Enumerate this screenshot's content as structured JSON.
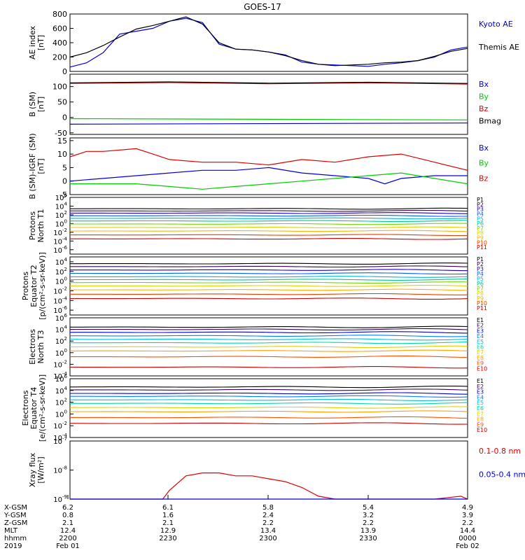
{
  "title": "GOES-17",
  "colors": {
    "black": "#000000",
    "red": "#dd0000",
    "green": "#00cc00",
    "blue": "#0000dd",
    "p": [
      "#000000",
      "#3a0050",
      "#1a00c8",
      "#0060ff",
      "#00b4d8",
      "#00c890",
      "#70d800",
      "#e0d000",
      "#ffb000",
      "#e04000",
      "#cc0000"
    ],
    "e": [
      "#000000",
      "#3a0050",
      "#0000d0",
      "#0080ff",
      "#00c0e0",
      "#00d8a0",
      "#e0d000",
      "#ffa000",
      "#ff5000",
      "#cc0000"
    ]
  },
  "chart_data": [
    {
      "id": "ae",
      "type": "line",
      "ylabel": "AE index\n[nT]",
      "ylim": [
        0,
        800
      ],
      "yticks": [
        "0",
        "200",
        "400",
        "600",
        "800"
      ],
      "series": [
        {
          "name": "Kyoto AE",
          "color": "blue",
          "x": [
            0,
            5,
            10,
            15,
            20,
            25,
            30,
            35,
            40,
            45,
            50,
            55,
            60,
            65,
            70,
            75,
            80,
            85,
            90,
            95,
            100,
            105,
            110,
            115,
            120
          ],
          "y": [
            60,
            120,
            260,
            520,
            560,
            600,
            700,
            740,
            680,
            380,
            310,
            300,
            270,
            230,
            130,
            100,
            90,
            80,
            70,
            100,
            120,
            150,
            200,
            300,
            340
          ]
        },
        {
          "name": "Themis AE",
          "color": "black",
          "x": [
            0,
            5,
            10,
            15,
            20,
            25,
            30,
            35,
            40,
            45,
            50,
            55,
            60,
            65,
            70,
            75,
            80,
            85,
            90,
            95,
            100,
            105,
            110,
            115,
            120
          ],
          "y": [
            200,
            260,
            360,
            480,
            590,
            640,
            700,
            760,
            660,
            400,
            310,
            300,
            270,
            220,
            150,
            100,
            80,
            90,
            100,
            120,
            130,
            150,
            210,
            280,
            320
          ]
        }
      ]
    },
    {
      "id": "bsm",
      "type": "line",
      "ylabel": "B (SM)\n[nT]",
      "ylim": [
        -55,
        140
      ],
      "yticks": [
        "-50",
        "0",
        "50",
        "100"
      ],
      "ytick_values": [
        -50,
        0,
        50,
        100
      ],
      "series": [
        {
          "name": "Bx",
          "color": "blue",
          "x": [
            0,
            120
          ],
          "y": [
            -22,
            -18
          ]
        },
        {
          "name": "By",
          "color": "green",
          "x": [
            0,
            120
          ],
          "y": [
            -4,
            -8
          ]
        },
        {
          "name": "Bz",
          "color": "red",
          "x": [
            0,
            30,
            60,
            90,
            120
          ],
          "y": [
            110,
            113,
            109,
            112,
            108
          ]
        },
        {
          "name": "Bmag",
          "color": "black",
          "x": [
            0,
            30,
            60,
            90,
            120
          ],
          "y": [
            112,
            115,
            111,
            114,
            110
          ]
        }
      ]
    },
    {
      "id": "bigrf",
      "type": "line",
      "ylabel": "B (SM)-IGRF (SM)\n[nT]",
      "ylim": [
        -5,
        16
      ],
      "yticks": [
        "-5",
        "0",
        "5",
        "10",
        "15"
      ],
      "ytick_values": [
        -5,
        0,
        5,
        10,
        15
      ],
      "series": [
        {
          "name": "Bx",
          "color": "blue",
          "x": [
            0,
            10,
            20,
            30,
            40,
            50,
            60,
            70,
            80,
            90,
            95,
            100,
            110,
            120
          ],
          "y": [
            0,
            1,
            2,
            3,
            4,
            4,
            5,
            3,
            2,
            1,
            -1,
            1,
            2,
            2
          ]
        },
        {
          "name": "By",
          "color": "green",
          "x": [
            0,
            10,
            20,
            30,
            40,
            50,
            60,
            70,
            80,
            90,
            100,
            110,
            120
          ],
          "y": [
            -1,
            -1,
            -1,
            -2,
            -3,
            -2,
            -1,
            0,
            1,
            2,
            3,
            1,
            -1
          ]
        },
        {
          "name": "Bz",
          "color": "red",
          "x": [
            0,
            5,
            10,
            20,
            25,
            30,
            40,
            50,
            60,
            70,
            80,
            90,
            100,
            110,
            120
          ],
          "y": [
            9,
            11,
            11,
            12,
            10,
            8,
            7,
            7,
            6,
            8,
            7,
            9,
            10,
            7,
            4
          ]
        }
      ]
    },
    {
      "id": "pnorth",
      "type": "line",
      "log": true,
      "ylabel": "Protons\nNorth T1",
      "ylim_exp": [
        -7,
        6
      ],
      "ytick_exps": [
        -6,
        -4,
        -2,
        0,
        2,
        4,
        6
      ],
      "labels": [
        "P1",
        "P2",
        "P3",
        "P4",
        "P5",
        "P6",
        "P7",
        "P8",
        "P9",
        "P10",
        "P11"
      ],
      "levels": [
        3.4,
        2.9,
        2.4,
        1.8,
        1.2,
        0.6,
        -0.1,
        -0.9,
        -1.7,
        -2.6,
        -3.5
      ]
    },
    {
      "id": "peq",
      "type": "line",
      "log": true,
      "ylabel": "Protons\nEquator T2\n[p/(cm²-s-sr-keV)]",
      "ylim_exp": [
        -7,
        5
      ],
      "ytick_exps": [
        -6,
        -4,
        -2,
        0,
        2,
        4
      ],
      "labels": [
        "P1",
        "P2",
        "P3",
        "P4",
        "P5",
        "P6",
        "P7",
        "P8",
        "P9",
        "P10",
        "P11"
      ],
      "levels": [
        3.6,
        3.0,
        2.3,
        1.6,
        0.9,
        0.3,
        -0.3,
        -1.0,
        -1.8,
        -2.7,
        -3.6
      ]
    },
    {
      "id": "enorth",
      "type": "line",
      "log": true,
      "ylabel": "Electrons\nNorth T3",
      "ylim_exp": [
        -4,
        6
      ],
      "ytick_exps": [
        -4,
        -2,
        0,
        2,
        4,
        6
      ],
      "labels": [
        "E1",
        "E2",
        "E3",
        "E4",
        "E5",
        "E6",
        "E7",
        "E8",
        "E9",
        "E10"
      ],
      "levels": [
        4.4,
        4.0,
        3.5,
        2.9,
        2.3,
        1.7,
        1.0,
        0.3,
        -0.7,
        -2.5
      ]
    },
    {
      "id": "eeq",
      "type": "line",
      "log": true,
      "ylabel": "Electrons\nEquator T4\n[e/(cm²-s-sr-keV)]",
      "ylim_exp": [
        -4,
        6
      ],
      "ytick_exps": [
        -4,
        -2,
        0,
        2,
        4,
        6
      ],
      "labels": [
        "E1",
        "E2",
        "E3",
        "E4",
        "E5",
        "E6",
        "E7",
        "E8",
        "E9",
        "E10"
      ],
      "levels": [
        4.6,
        4.1,
        3.5,
        3.0,
        2.4,
        1.8,
        1.1,
        0.4,
        -0.6,
        -1.6
      ]
    },
    {
      "id": "xray",
      "type": "line",
      "log": true,
      "ylabel": "Xray flux\n[W/m²]",
      "ylim_exp": [
        -9,
        -7
      ],
      "ytick_exps": [
        -9,
        -8,
        -7
      ],
      "series": [
        {
          "name": "0.1-0.8 nm",
          "color": "red",
          "x": [
            0,
            25,
            28,
            30,
            35,
            40,
            45,
            50,
            55,
            60,
            65,
            70,
            75,
            80,
            90,
            100,
            110,
            118,
            120
          ],
          "y": [
            -9,
            -9,
            -9,
            -8.7,
            -8.2,
            -8.1,
            -8.1,
            -8.2,
            -8.2,
            -8.3,
            -8.4,
            -8.6,
            -8.9,
            -9,
            -9,
            -9,
            -9,
            -8.9,
            -9
          ]
        },
        {
          "name": "0.05-0.4 nm",
          "color": "blue",
          "x": [
            0,
            120
          ],
          "y": [
            -9,
            -9
          ]
        }
      ]
    }
  ],
  "axis": {
    "rows": [
      {
        "label": "X-GSM",
        "values": [
          "6.2",
          "6.1",
          "5.8",
          "5.4",
          "4.9"
        ]
      },
      {
        "label": "Y-GSM",
        "values": [
          "0.8",
          "1.6",
          "2.4",
          "3.2",
          "3.9"
        ]
      },
      {
        "label": "Z-GSM",
        "values": [
          "2.1",
          "2.1",
          "2.2",
          "2.2",
          "2.2"
        ]
      },
      {
        "label": "MLT",
        "values": [
          "12.4",
          "12.9",
          "13.4",
          "13.9",
          "14.4"
        ]
      },
      {
        "label": "hhmm",
        "values": [
          "2200",
          "2230",
          "2300",
          "2330",
          "0000"
        ]
      },
      {
        "label": "2019",
        "values": [
          "Feb 01",
          "",
          "",
          "",
          "Feb 02"
        ]
      }
    ]
  }
}
